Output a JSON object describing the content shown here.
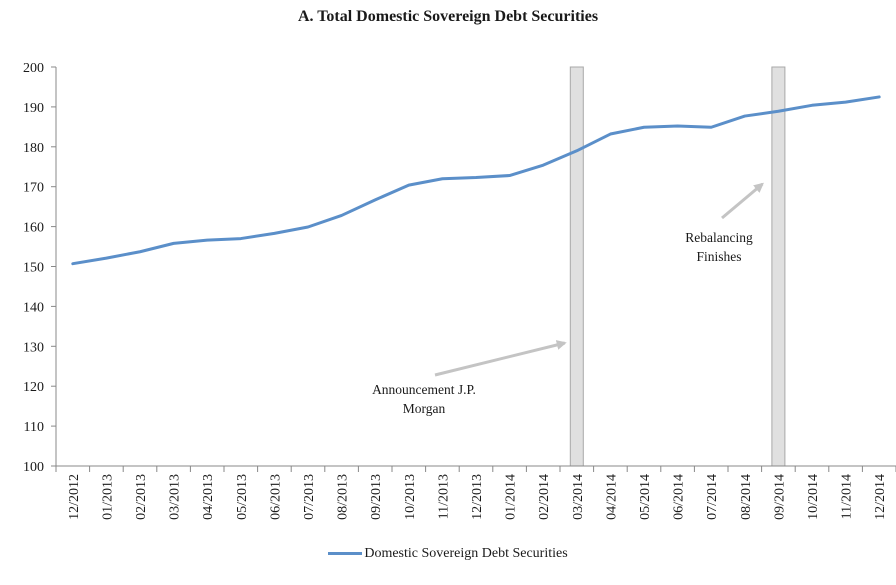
{
  "chart_data": {
    "type": "line",
    "title": "A. Total Domestic Sovereign Debt Securities",
    "xlabel": "",
    "ylabel": "",
    "ylim": [
      100,
      200
    ],
    "yticks": [
      100,
      110,
      120,
      130,
      140,
      150,
      160,
      170,
      180,
      190,
      200
    ],
    "categories": [
      "12/2012",
      "01/2013",
      "02/2013",
      "03/2013",
      "04/2013",
      "05/2013",
      "06/2013",
      "07/2013",
      "08/2013",
      "09/2013",
      "10/2013",
      "11/2013",
      "12/2013",
      "01/2014",
      "02/2014",
      "03/2014",
      "04/2014",
      "05/2014",
      "06/2014",
      "07/2014",
      "08/2014",
      "09/2014",
      "10/2014",
      "11/2014",
      "12/2014"
    ],
    "series": [
      {
        "name": "Domestic Sovereign Debt Securities",
        "color": "#5b8fc9",
        "values": [
          150.7,
          152.1,
          153.7,
          155.8,
          156.6,
          157.0,
          158.3,
          159.9,
          162.8,
          166.7,
          170.4,
          172.0,
          172.3,
          172.8,
          175.4,
          179.0,
          183.2,
          184.9,
          185.2,
          184.9,
          187.7,
          188.9,
          190.4,
          191.2,
          192.5
        ]
      }
    ],
    "shaded_periods": [
      {
        "category": "03/2014",
        "color": "#e0e0e0"
      },
      {
        "category": "09/2014",
        "color": "#e0e0e0"
      }
    ],
    "annotations": [
      {
        "lines": [
          "Announcement J.P.",
          "Morgan"
        ],
        "points_to": "03/2014"
      },
      {
        "lines": [
          "Rebalancing",
          "Finishes"
        ],
        "points_to": "09/2014"
      }
    ],
    "legend": {
      "position": "bottom",
      "entries": [
        "Domestic Sovereign Debt Securities"
      ]
    },
    "grid": false
  }
}
